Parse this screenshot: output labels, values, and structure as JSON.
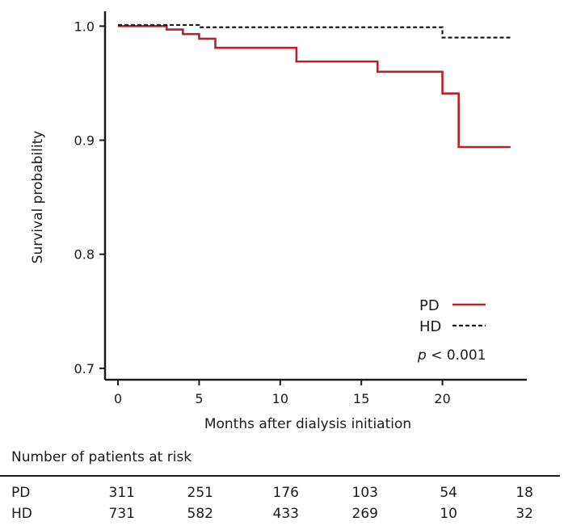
{
  "chart_data": {
    "type": "line",
    "title": "",
    "xlabel": "Months after dialysis initiation",
    "ylabel": "Survival probability",
    "xlim": [
      -0.8,
      25.2
    ],
    "ylim": [
      0.69,
      1.013
    ],
    "xticks": [
      0,
      5,
      10,
      15,
      20
    ],
    "yticks": [
      0.7,
      0.8,
      0.9,
      1.0
    ],
    "xtick_labels": [
      "0",
      "5",
      "10",
      "15",
      "20"
    ],
    "ytick_labels": [
      "0.7",
      "0.8",
      "0.9",
      "1.0"
    ],
    "series": [
      {
        "name": "PD",
        "style": "solid",
        "color": "#b5232a",
        "steps": [
          [
            0,
            1.0
          ],
          [
            3,
            0.997
          ],
          [
            4,
            0.993
          ],
          [
            5,
            0.989
          ],
          [
            6,
            0.981
          ],
          [
            11,
            0.969
          ],
          [
            16,
            0.96
          ],
          [
            20,
            0.941
          ],
          [
            21,
            0.894
          ],
          [
            24.2,
            0.894
          ]
        ]
      },
      {
        "name": "HD",
        "style": "dashed",
        "color": "#1a1a1a",
        "steps": [
          [
            0,
            1.001
          ],
          [
            5,
            0.999
          ],
          [
            20,
            0.99
          ],
          [
            24.2,
            0.99
          ]
        ]
      }
    ],
    "legend": {
      "position": "bottom-right",
      "entries": [
        "PD",
        "HD"
      ]
    },
    "annotation": {
      "prefix": "p",
      "text": " < 0.001"
    }
  },
  "risk_table": {
    "title": "Number of patients at risk",
    "rows": [
      {
        "label": "PD",
        "values": [
          "311",
          "251",
          "176",
          "103",
          "54",
          "18"
        ]
      },
      {
        "label": "HD",
        "values": [
          "731",
          "582",
          "433",
          "269",
          "10",
          "32"
        ]
      }
    ]
  }
}
